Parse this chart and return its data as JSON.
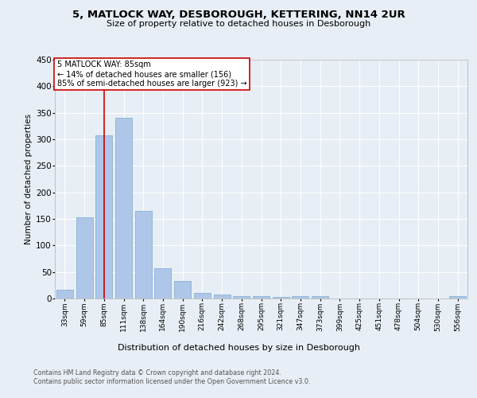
{
  "title1": "5, MATLOCK WAY, DESBOROUGH, KETTERING, NN14 2UR",
  "title2": "Size of property relative to detached houses in Desborough",
  "xlabel": "Distribution of detached houses by size in Desborough",
  "ylabel": "Number of detached properties",
  "categories": [
    "33sqm",
    "59sqm",
    "85sqm",
    "111sqm",
    "138sqm",
    "164sqm",
    "190sqm",
    "216sqm",
    "242sqm",
    "268sqm",
    "295sqm",
    "321sqm",
    "347sqm",
    "373sqm",
    "399sqm",
    "425sqm",
    "451sqm",
    "478sqm",
    "504sqm",
    "530sqm",
    "556sqm"
  ],
  "values": [
    17,
    153,
    307,
    340,
    165,
    57,
    33,
    10,
    7,
    5,
    4,
    3,
    4,
    4,
    0,
    0,
    0,
    0,
    0,
    0,
    4
  ],
  "bar_color": "#aec6e8",
  "bar_edge_color": "#7aaad0",
  "vline_x": 2,
  "vline_color": "#cc0000",
  "annotation_line1": "5 MATLOCK WAY: 85sqm",
  "annotation_line2": "← 14% of detached houses are smaller (156)",
  "annotation_line3": "85% of semi-detached houses are larger (923) →",
  "annotation_box_color": "#cc0000",
  "ylim": [
    0,
    450
  ],
  "yticks": [
    0,
    50,
    100,
    150,
    200,
    250,
    300,
    350,
    400,
    450
  ],
  "footer1": "Contains HM Land Registry data © Crown copyright and database right 2024.",
  "footer2": "Contains public sector information licensed under the Open Government Licence v3.0.",
  "background_color": "#e8eef5",
  "plot_bg_color": "#e8eef5",
  "title1_fontsize": 9.5,
  "title2_fontsize": 8.0,
  "ylabel_fontsize": 7.5,
  "xlabel_fontsize": 8.0,
  "tick_fontsize": 6.5,
  "ytick_fontsize": 7.5,
  "ann_fontsize": 7.0,
  "footer_fontsize": 5.8
}
